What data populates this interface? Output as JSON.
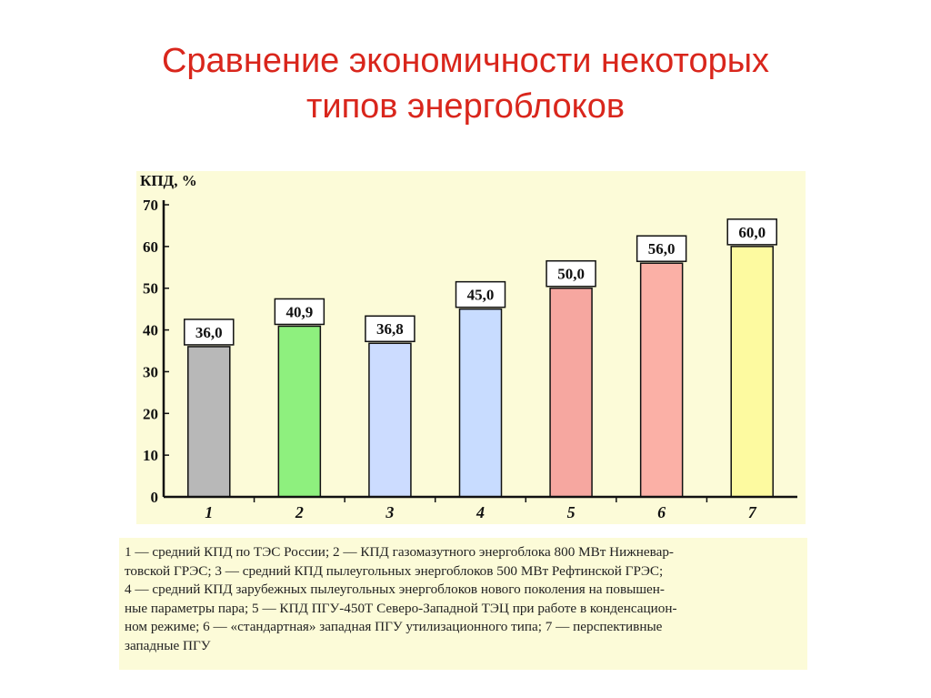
{
  "page": {
    "title_lines": [
      "Сравнение экономичности некоторых",
      "типов энергоблоков"
    ]
  },
  "legend_lines": [
    "1 — средний КПД по ТЭС России; 2 — КПД газомазутного энергоблока 800 МВт Нижневар-",
    "товской ГРЭС; 3 — средний КПД пылеугольных энергоблоков 500 МВт Рефтинской ГРЭС;",
    "4 — средний КПД зарубежных пылеугольных энергоблоков нового поколения на повышен-",
    "ные параметры пара; 5 — КПД ПГУ-450Т Северо-Западной ТЭЦ при работе в конденсацион-",
    "ном режиме; 6 — «стандартная» западная ПГУ утилизационного типа; 7 — перспективные",
    "западные ПГУ"
  ],
  "chart_data": {
    "type": "bar",
    "title": "",
    "ylabel": "КПД, %",
    "xlabel": "",
    "ylim": [
      0,
      70
    ],
    "yticks": [
      0,
      10,
      20,
      30,
      40,
      50,
      60,
      70
    ],
    "ytick_labels": [
      "0",
      "10",
      "20",
      "30",
      "40",
      "50",
      "60",
      "70"
    ],
    "categories": [
      "1",
      "2",
      "3",
      "4",
      "5",
      "6",
      "7"
    ],
    "values": [
      36.0,
      40.9,
      36.8,
      45.0,
      50.0,
      56.0,
      60.0
    ],
    "value_labels": [
      "36,0",
      "40,9",
      "36,8",
      "45,0",
      "50,0",
      "56,0",
      "60,0"
    ],
    "colors": [
      "#b8b8b8",
      "#8ef07e",
      "#ccdcff",
      "#c8dcff",
      "#f6a7a0",
      "#fbb0a6",
      "#fdfaa0"
    ],
    "grid": false,
    "legend": "below"
  }
}
